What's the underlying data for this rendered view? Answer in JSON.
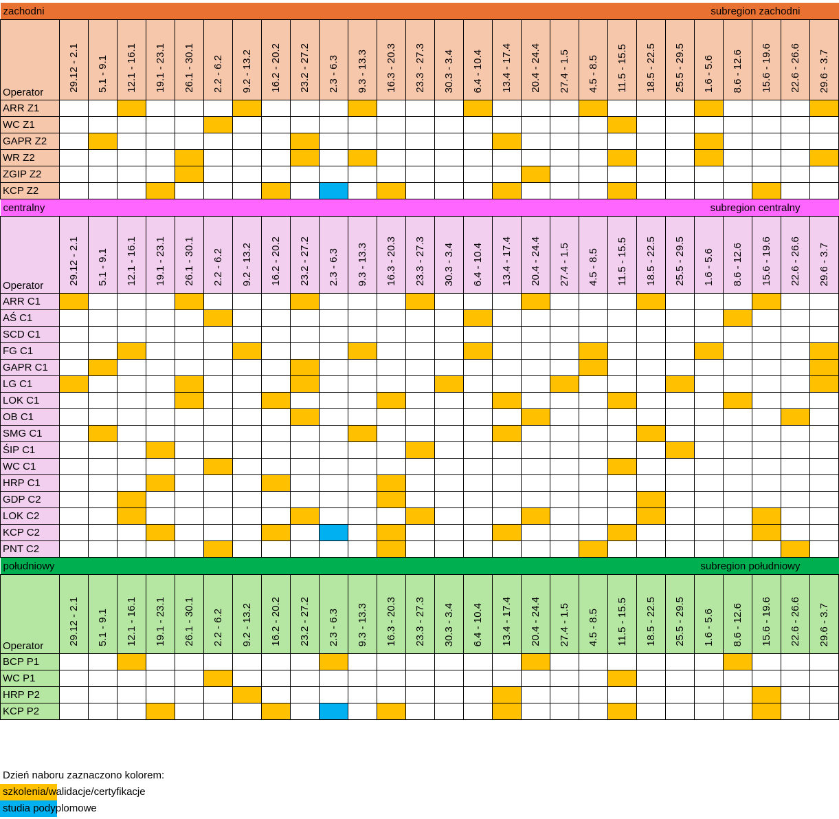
{
  "colors": {
    "training": "#FFC000",
    "postgraduate": "#00B0F0"
  },
  "operator_header": "Operator",
  "weeks": [
    "29.12 - 2.1",
    "5.1 - 9.1",
    "12.1 - 16.1",
    "19.1 - 23.1",
    "26.1 - 30.1",
    "2.2 - 6.2",
    "9.2 - 13.2",
    "16.2 - 20.2",
    "23.2 - 27.2",
    "2.3 - 6.3",
    "9.3 - 13.3",
    "16.3 - 20.3",
    "23.3 - 27.3",
    "30.3 - 3.4",
    "6.4 - 10.4",
    "13.4 - 17.4",
    "20.4 - 24.4",
    "27.4 - 1.5",
    "4.5 - 8.5",
    "11.5 - 15.5",
    "18.5 - 22.5",
    "25.5 - 29.5",
    "1.6 - 5.6",
    "8.6 - 12.6",
    "15.6 - 19.6",
    "22.6 - 26.6",
    "29.6 - 3.7"
  ],
  "sections": [
    {
      "name": "zachodni",
      "label": "subregion zachodni",
      "band_color": "#E97132",
      "tint": "#F7C7AC",
      "rows": [
        {
          "operator": "ARR Z1",
          "training": [
            "12.1 - 16.1",
            "9.2 - 13.2",
            "9.3 - 13.3",
            "6.4 - 10.4",
            "4.5 - 8.5",
            "1.6 - 5.6",
            "29.6 - 3.7"
          ],
          "postgraduate": []
        },
        {
          "operator": "WC Z1",
          "training": [
            "2.2 - 6.2",
            "11.5 - 15.5"
          ],
          "postgraduate": []
        },
        {
          "operator": "GAPR Z2",
          "training": [
            "5.1 - 9.1",
            "23.2 - 27.2",
            "13.4 - 17.4",
            "1.6 - 5.6"
          ],
          "postgraduate": []
        },
        {
          "operator": "WR Z2",
          "training": [
            "26.1 - 30.1",
            "23.2 - 27.2",
            "9.3 - 13.3",
            "11.5 - 15.5",
            "1.6 - 5.6",
            "29.6 - 3.7"
          ],
          "postgraduate": []
        },
        {
          "operator": "ZGIP Z2",
          "training": [
            "26.1 - 30.1",
            "20.4 - 24.4"
          ],
          "postgraduate": []
        },
        {
          "operator": "KCP Z2",
          "training": [
            "19.1 - 23.1",
            "16.2 - 20.2",
            "16.3 - 20.3",
            "13.4 - 17.4",
            "11.5 - 15.5",
            "15.6 - 19.6"
          ],
          "postgraduate": [
            "2.3 - 6.3"
          ]
        }
      ]
    },
    {
      "name": "centralny",
      "label": "subregion centralny",
      "band_color": "#FF66FF",
      "tint": "#F2CEEF",
      "rows": [
        {
          "operator": "ARR C1",
          "training": [
            "29.12 - 2.1",
            "26.1 - 30.1",
            "23.2 - 27.2",
            "23.3 - 27.3",
            "20.4 - 24.4",
            "18.5 - 22.5",
            "15.6 - 19.6"
          ],
          "postgraduate": []
        },
        {
          "operator": "AŚ C1",
          "training": [
            "2.2 - 6.2",
            "6.4 - 10.4",
            "8.6 - 12.6"
          ],
          "postgraduate": []
        },
        {
          "operator": "SCD C1",
          "training": [],
          "postgraduate": []
        },
        {
          "operator": "FG C1",
          "training": [
            "12.1 - 16.1",
            "9.2 - 13.2",
            "9.3 - 13.3",
            "6.4 - 10.4",
            "4.5 - 8.5",
            "1.6 - 5.6",
            "29.6 - 3.7"
          ],
          "postgraduate": []
        },
        {
          "operator": "GAPR C1",
          "training": [
            "5.1 - 9.1",
            "23.2 - 27.2",
            "4.5 - 8.5",
            "29.6 - 3.7"
          ],
          "postgraduate": []
        },
        {
          "operator": "LG C1",
          "training": [
            "29.12 - 2.1",
            "26.1 - 30.1",
            "23.2 - 27.2",
            "30.3 - 3.4",
            "27.4 - 1.5",
            "25.5 - 29.5",
            "29.6 - 3.7"
          ],
          "postgraduate": []
        },
        {
          "operator": "LOK C1",
          "training": [
            "26.1 - 30.1",
            "16.2 - 20.2",
            "16.3 - 20.3",
            "13.4 - 17.4",
            "11.5 - 15.5",
            "8.6 - 12.6"
          ],
          "postgraduate": []
        },
        {
          "operator": "OB C1",
          "training": [
            "23.2 - 27.2",
            "20.4 - 24.4",
            "22.6 - 26.6"
          ],
          "postgraduate": []
        },
        {
          "operator": "SMG C1",
          "training": [
            "5.1 - 9.1",
            "9.3 - 13.3",
            "13.4 - 17.4",
            "18.5 - 22.5"
          ],
          "postgraduate": []
        },
        {
          "operator": "ŚIP C1",
          "training": [
            "19.1 - 23.1",
            "23.3 - 27.3",
            "25.5 - 29.5"
          ],
          "postgraduate": []
        },
        {
          "operator": "WC C1",
          "training": [
            "2.2 - 6.2",
            "11.5 - 15.5"
          ],
          "postgraduate": []
        },
        {
          "operator": "HRP C1",
          "training": [
            "19.1 - 23.1",
            "16.2 - 20.2",
            "16.3 - 20.3"
          ],
          "postgraduate": []
        },
        {
          "operator": "GDP C2",
          "training": [
            "12.1 - 16.1",
            "16.3 - 20.3",
            "18.5 - 22.5"
          ],
          "postgraduate": []
        },
        {
          "operator": "LOK C2",
          "training": [
            "12.1 - 16.1",
            "23.2 - 27.2",
            "23.3 - 27.3",
            "20.4 - 24.4",
            "18.5 - 22.5",
            "15.6 - 19.6"
          ],
          "postgraduate": []
        },
        {
          "operator": "KCP C2",
          "training": [
            "19.1 - 23.1",
            "16.2 - 20.2",
            "16.3 - 20.3",
            "13.4 - 17.4",
            "11.5 - 15.5",
            "15.6 - 19.6"
          ],
          "postgraduate": [
            "2.3 - 6.3"
          ]
        },
        {
          "operator": "PNT C2",
          "training": [
            "2.2 - 6.2",
            "16.3 - 20.3",
            "4.5 - 8.5",
            "22.6 - 26.6"
          ],
          "postgraduate": []
        }
      ]
    },
    {
      "name": "południowy",
      "label": "subregion południowy",
      "band_color": "#00B050",
      "tint": "#B5E6A2",
      "rows": [
        {
          "operator": "BCP P1",
          "training": [
            "12.1 - 16.1",
            "2.3 - 6.3",
            "20.4 - 24.4",
            "8.6 - 12.6"
          ],
          "postgraduate": []
        },
        {
          "operator": "WC P1",
          "training": [
            "2.2 - 6.2",
            "11.5 - 15.5"
          ],
          "postgraduate": []
        },
        {
          "operator": "HRP P2",
          "training": [
            "9.2 - 13.2",
            "13.4 - 17.4",
            "15.6 - 19.6"
          ],
          "postgraduate": []
        },
        {
          "operator": "KCP P2",
          "training": [
            "19.1 - 23.1",
            "16.2 - 20.2",
            "16.3 - 20.3",
            "13.4 - 17.4",
            "11.5 - 15.5",
            "15.6 - 19.6"
          ],
          "postgraduate": [
            "2.3 - 6.3"
          ]
        }
      ]
    }
  ],
  "legend": {
    "title": "Dzień naboru zaznaczono kolorem:",
    "training": "szkolenia/walidacje/certyfikacje",
    "postgraduate": "studia podyplomowe"
  }
}
